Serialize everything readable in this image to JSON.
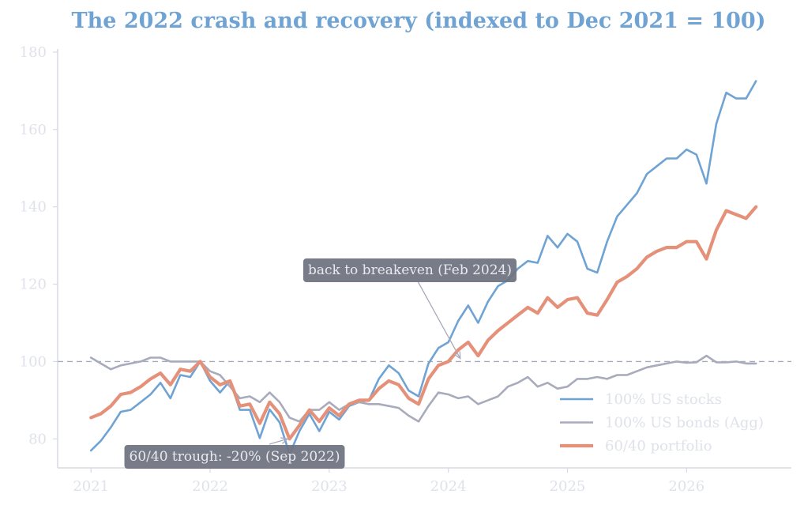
{
  "chart_data": {
    "type": "line",
    "title": "The 2022 crash and recovery (indexed to Dec 2021 = 100)",
    "xlabel": "",
    "ylabel": "",
    "xlim": [
      2020.72,
      2026.88
    ],
    "ylim": [
      72.5,
      180.8
    ],
    "x_ticks": [
      2021,
      2022,
      2023,
      2024,
      2025,
      2026
    ],
    "y_ticks": [
      80,
      100,
      120,
      140,
      160,
      180
    ],
    "grid": false,
    "legend": "bottom-right",
    "reference_line": {
      "y": 100,
      "style": "dashed",
      "color": "#a7abbb"
    },
    "x": [
      2021.0,
      2021.083,
      2021.167,
      2021.25,
      2021.333,
      2021.417,
      2021.5,
      2021.583,
      2021.667,
      2021.75,
      2021.833,
      2021.917,
      2022.0,
      2022.083,
      2022.167,
      2022.25,
      2022.333,
      2022.417,
      2022.5,
      2022.583,
      2022.667,
      2022.75,
      2022.833,
      2022.917,
      2023.0,
      2023.083,
      2023.167,
      2023.25,
      2023.333,
      2023.417,
      2023.5,
      2023.583,
      2023.667,
      2023.75,
      2023.833,
      2023.917,
      2024.0,
      2024.083,
      2024.167,
      2024.25,
      2024.333,
      2024.417,
      2024.5,
      2024.583,
      2024.667,
      2024.75,
      2024.833,
      2024.917,
      2025.0,
      2025.083,
      2025.167,
      2025.25,
      2025.333,
      2025.417,
      2025.5,
      2025.583,
      2025.667,
      2025.75,
      2025.833,
      2025.917,
      2026.0,
      2026.083,
      2026.167,
      2026.25,
      2026.333,
      2026.417,
      2026.5,
      2026.583
    ],
    "series": [
      {
        "name": "100% US stocks",
        "color": "#6fa3d4",
        "width": 2.6,
        "values": [
          77,
          79.5,
          83,
          87,
          87.5,
          89.5,
          91.5,
          94.5,
          90.5,
          96.5,
          96,
          100,
          95,
          92,
          95,
          87.5,
          87.5,
          80.2,
          87.6,
          84.3,
          76,
          82,
          86.5,
          82,
          87,
          85,
          88.5,
          89.5,
          90,
          95.5,
          99,
          97,
          92.5,
          91,
          99.5,
          103.5,
          105,
          110.5,
          114.5,
          110,
          115.5,
          119.5,
          121,
          124,
          126,
          125.5,
          132.5,
          129.5,
          133,
          131,
          124,
          123,
          131,
          137.5,
          140.5,
          143.5,
          148.5,
          150.5,
          152.5,
          152.5,
          154.8,
          153.5,
          146,
          161.5,
          169.5,
          168,
          168,
          172.5
        ]
      },
      {
        "name": "100% US bonds (Agg)",
        "color": "#a7abbb",
        "width": 2.6,
        "values": [
          101,
          99.5,
          98,
          99,
          99.5,
          100,
          101,
          101,
          100,
          100,
          100,
          100,
          97.5,
          96.5,
          93.5,
          90.5,
          91,
          89.5,
          92,
          89.5,
          85.5,
          84.5,
          87.5,
          87.5,
          89.5,
          87.5,
          89,
          89.5,
          89,
          89,
          88.5,
          88,
          86,
          84.5,
          88.5,
          92,
          91.5,
          90.5,
          91,
          89,
          90,
          91,
          93.5,
          94.5,
          96,
          93.5,
          94.5,
          93,
          93.5,
          95.5,
          95.5,
          96,
          95.5,
          96.5,
          96.5,
          97.5,
          98.5,
          99,
          99.5,
          100,
          99.7,
          99.8,
          101.5,
          99.8,
          99.8,
          100,
          99.5,
          99.5
        ]
      },
      {
        "name": "60/40 portfolio",
        "color": "#e5917a",
        "width": 4.2,
        "values": [
          85.5,
          86.5,
          88.5,
          91.5,
          92,
          93.5,
          95.5,
          97,
          94,
          98,
          97.5,
          100,
          96,
          94,
          95,
          88.5,
          89,
          84,
          89.5,
          86.5,
          80,
          83.5,
          87.5,
          84.5,
          88,
          86,
          89,
          90,
          90,
          93,
          95,
          94,
          90.5,
          89,
          95.5,
          99,
          100,
          103,
          105,
          101.5,
          105.5,
          108,
          110,
          112,
          114,
          112.5,
          116.5,
          114,
          116,
          116.5,
          112.5,
          112,
          116,
          120.5,
          122,
          124,
          127,
          128.5,
          129.5,
          129.5,
          131,
          131,
          126.5,
          134,
          139,
          138,
          137,
          140
        ]
      }
    ],
    "annotations": [
      {
        "text": "back to breakeven (Feb 2024)",
        "x": 2024.1,
        "y": 100.8
      },
      {
        "text": "60/40 trough: -20% (Sep 2022)",
        "x": 2022.65,
        "y": 80
      }
    ]
  }
}
